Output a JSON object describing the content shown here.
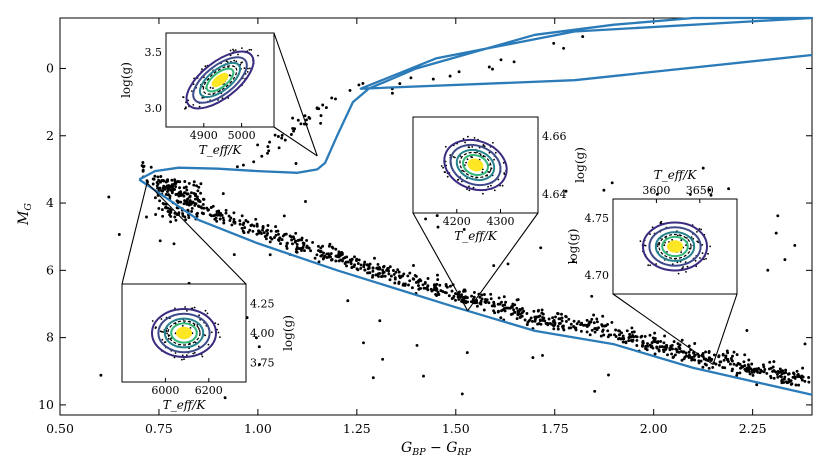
{
  "chart_data": {
    "type": "scatter",
    "title": "",
    "xlabel": "G_BP − G_RP",
    "ylabel": "M_G",
    "xlim": [
      0.5,
      2.4
    ],
    "ylim": [
      10.3,
      -1.5
    ],
    "x_ticks": [
      "0.50",
      "0.75",
      "1.00",
      "1.25",
      "1.50",
      "1.75",
      "2.00",
      "2.25"
    ],
    "y_ticks": [
      "0",
      "2",
      "4",
      "6",
      "8",
      "10"
    ],
    "colors": {
      "isochrone": "#2b7bb9",
      "stars": "#000000",
      "contour_outer": "#3b2a80",
      "contour_mid": "#2a9d8f",
      "contour_core": "#fde725"
    },
    "isochrone": [
      {
        "x": 0.7,
        "y": 3.3
      },
      {
        "x": 0.74,
        "y": 3.05
      },
      {
        "x": 0.8,
        "y": 2.95
      },
      {
        "x": 0.9,
        "y": 2.98
      },
      {
        "x": 1.0,
        "y": 3.05
      },
      {
        "x": 1.1,
        "y": 3.1
      },
      {
        "x": 1.15,
        "y": 3.0
      },
      {
        "x": 1.17,
        "y": 2.8
      },
      {
        "x": 1.2,
        "y": 2.0
      },
      {
        "x": 1.24,
        "y": 1.0
      },
      {
        "x": 1.28,
        "y": 0.6
      },
      {
        "x": 1.4,
        "y": 0.0
      },
      {
        "x": 1.55,
        "y": -0.5
      },
      {
        "x": 1.7,
        "y": -1.0
      },
      {
        "x": 1.9,
        "y": -1.3
      },
      {
        "x": 2.1,
        "y": -1.5
      },
      {
        "x": 2.4,
        "y": -1.5
      },
      {
        "x": 1.8,
        "y": -1.1
      },
      {
        "x": 1.45,
        "y": -0.3
      },
      {
        "x": 1.26,
        "y": 0.6
      },
      {
        "x": 1.8,
        "y": 0.35
      },
      {
        "x": 2.4,
        "y": -0.4
      }
    ],
    "isochrone_ms": [
      {
        "x": 0.7,
        "y": 3.3
      },
      {
        "x": 0.75,
        "y": 3.7
      },
      {
        "x": 0.85,
        "y": 4.5
      },
      {
        "x": 1.0,
        "y": 5.2
      },
      {
        "x": 1.2,
        "y": 6.0
      },
      {
        "x": 1.5,
        "y": 7.1
      },
      {
        "x": 1.7,
        "y": 7.8
      },
      {
        "x": 1.9,
        "y": 8.2
      },
      {
        "x": 2.1,
        "y": 8.9
      },
      {
        "x": 2.4,
        "y": 9.7
      }
    ],
    "insets": [
      {
        "name": "inset-giant",
        "xlabel": "T_eff/K",
        "ylabel": "log(g)",
        "x_ticks": [
          "4900",
          "5000"
        ],
        "y_ticks": [
          "3.0",
          "3.5"
        ],
        "anchor": {
          "x": 1.15,
          "y": 2.6
        }
      },
      {
        "name": "inset-turnoff",
        "xlabel": "T_eff/K",
        "ylabel": "log(g)",
        "x_ticks": [
          "6000",
          "6200"
        ],
        "y_ticks": [
          "3.75",
          "4.00",
          "4.25"
        ],
        "anchor": {
          "x": 0.72,
          "y": 3.4
        }
      },
      {
        "name": "inset-ms-k",
        "xlabel": "T_eff/K",
        "ylabel": "log(g)",
        "x_ticks": [
          "4200",
          "4300"
        ],
        "y_ticks": [
          "4.64",
          "4.66"
        ],
        "anchor": {
          "x": 1.53,
          "y": 7.2
        }
      },
      {
        "name": "inset-ms-m",
        "xlabel": "T_eff/K",
        "ylabel": "log(g)",
        "x_ticks": [
          "3600",
          "3650"
        ],
        "y_ticks": [
          "4.70",
          "4.75"
        ],
        "anchor": {
          "x": 2.15,
          "y": 8.8
        }
      }
    ]
  }
}
